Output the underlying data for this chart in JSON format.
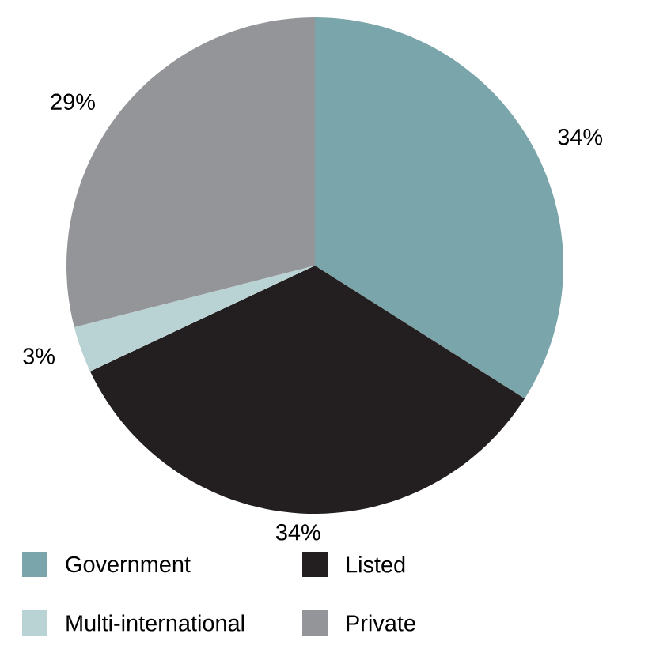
{
  "chart_data": {
    "type": "pie",
    "categories": [
      "Government",
      "Listed",
      "Multi-international",
      "Private"
    ],
    "values": [
      34,
      34,
      3,
      29
    ],
    "colors": [
      "#7aa6ab",
      "#231f20",
      "#b9d3d5",
      "#939598"
    ],
    "value_labels": [
      "34%",
      "34%",
      "3%",
      "29%"
    ],
    "legend": "bottom"
  }
}
